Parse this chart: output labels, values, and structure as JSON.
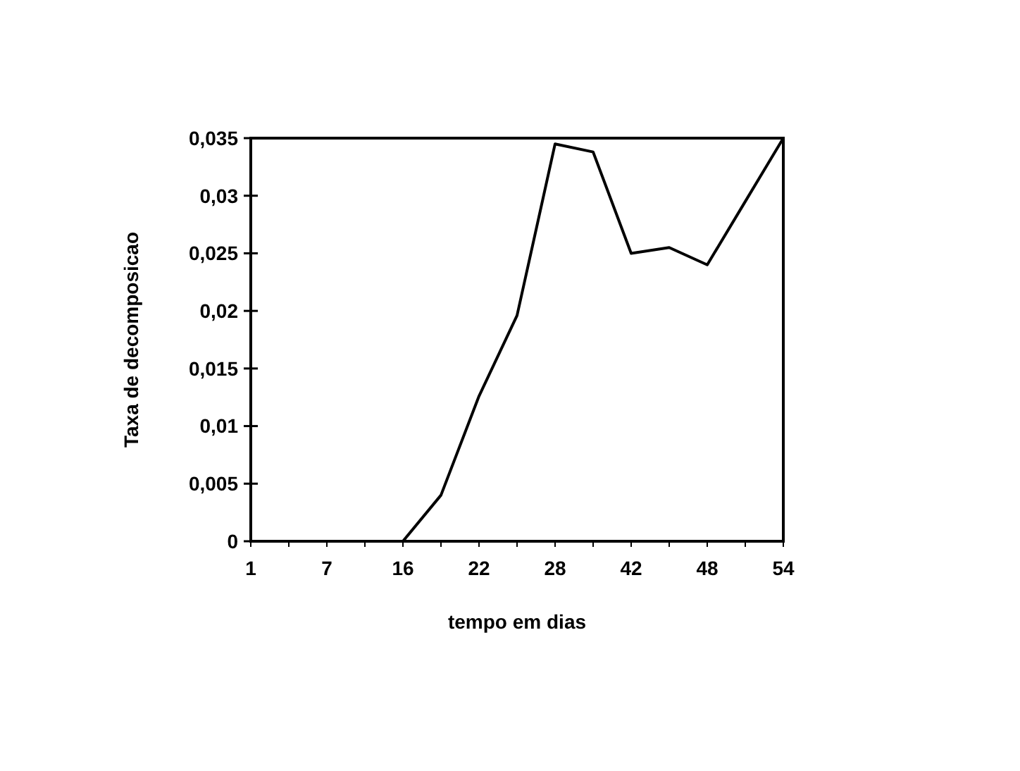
{
  "chart_data": {
    "type": "line",
    "xlabel": "tempo em dias",
    "ylabel": "Taxa de decomposicao",
    "categories": [
      "1",
      null,
      "7",
      null,
      "16",
      null,
      "22",
      null,
      "28",
      null,
      "42",
      null,
      "48",
      null,
      "54"
    ],
    "series": [
      {
        "color": "#000000",
        "values": [
          0,
          0,
          0,
          0,
          0,
          0.004,
          0.0126,
          0.0196,
          0.0345,
          0.0338,
          0.025,
          0.0255,
          0.024,
          0.0295,
          0.035
        ]
      }
    ],
    "ylim": [
      0,
      0.035
    ],
    "yticks": [
      0,
      {
        "value": 0.005,
        "label": "0,005"
      },
      {
        "value": 0.01,
        "label": "0,01"
      },
      {
        "value": 0.015,
        "label": "0,015"
      },
      {
        "value": 0.02,
        "label": "0,02"
      },
      {
        "value": 0.025,
        "label": "0,025"
      },
      {
        "value": 0.03,
        "label": "0,03"
      },
      {
        "value": 0.035,
        "label": "0,035"
      }
    ],
    "grid": false,
    "marker": "none",
    "line_style": "solid"
  }
}
